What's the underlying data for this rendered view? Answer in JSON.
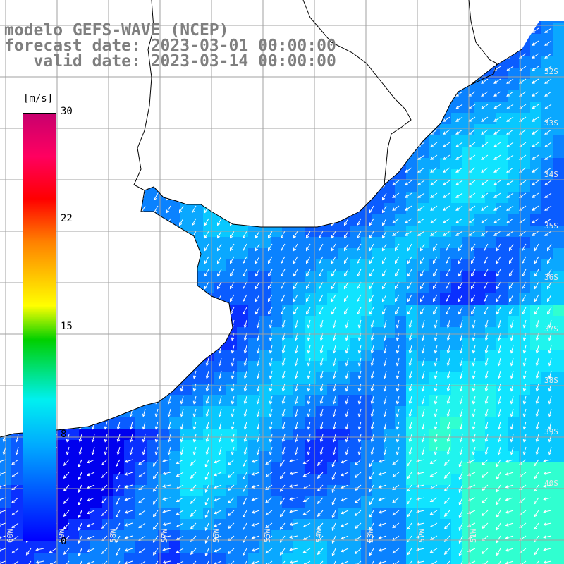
{
  "title": {
    "line1": "modelo GEFS-WAVE (NCEP)",
    "line2": "forecast date: 2023-03-01 00:00:00",
    "line3": "   valid date: 2023-03-14 00:00:00"
  },
  "colorbar": {
    "unit": "[m/s]",
    "ticks": [
      "30",
      "22",
      "15",
      "8",
      "0"
    ],
    "colors": [
      "#0000ff",
      "#00a8ff",
      "#00f0f0",
      "#00d000",
      "#ffff00",
      "#ff8000",
      "#ff0000",
      "#c8006e"
    ]
  },
  "map": {
    "land_color": "#ffffff",
    "grid_color": "#a0a0a0",
    "coast_color": "#000000",
    "arrow_color": "#ffffff",
    "lat_labels": [
      "32S",
      "33S",
      "34S",
      "35S",
      "36S",
      "37S",
      "38S",
      "39S",
      "40S"
    ],
    "lon_labels": [
      "60W",
      "59W",
      "58W",
      "57W",
      "56W",
      "55W",
      "54W",
      "53W",
      "52W",
      "51W"
    ]
  }
}
